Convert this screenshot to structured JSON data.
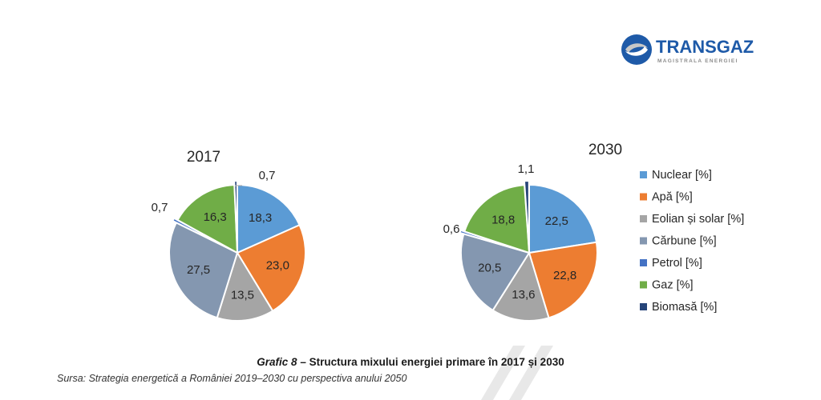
{
  "logo": {
    "brand": "TRANSGAZ",
    "tagline": "MAGISTRALA ENERGIEI",
    "colors": {
      "blue": "#1e5aa8",
      "grey": "#8c8c8c"
    }
  },
  "chart_data": [
    {
      "type": "pie",
      "title": "2017",
      "categories": [
        "Nuclear [%]",
        "Apă [%]",
        "Eolian și solar [%]",
        "Cărbune [%]",
        "Petrol [%]",
        "Gaz [%]",
        "Biomasă  [%]"
      ],
      "values": [
        18.3,
        23.0,
        13.5,
        27.5,
        0.7,
        16.3,
        0.7
      ],
      "labels": [
        "18,3",
        "23,0",
        "13,5",
        "27,5",
        "0,7",
        "16,3",
        "0,7"
      ]
    },
    {
      "type": "pie",
      "title": "2030",
      "categories": [
        "Nuclear [%]",
        "Apă [%]",
        "Eolian și solar [%]",
        "Cărbune [%]",
        "Petrol [%]",
        "Gaz [%]",
        "Biomasă  [%]"
      ],
      "values": [
        22.5,
        22.8,
        13.6,
        20.5,
        0.6,
        18.8,
        1.1
      ],
      "labels": [
        "22,5",
        "22,8",
        "13,6",
        "20,5",
        "0,6",
        "18,8",
        "1,1"
      ]
    }
  ],
  "legend": {
    "placement": "right",
    "items": [
      "Nuclear [%]",
      "Apă [%]",
      "Eolian și solar [%]",
      "Cărbune [%]",
      "Petrol [%]",
      "Gaz [%]",
      "Biomasă  [%]"
    ]
  },
  "colors": [
    "#5b9bd5",
    "#ed7d31",
    "#a5a5a5",
    "#8497b0",
    "#4472c4",
    "#70ad47",
    "#264478"
  ],
  "caption": {
    "lead": "Grafic 8",
    "rest": " – Structura mixului energiei primare în 2017 și 2030"
  },
  "source": "Sursa: Strategia energetică a României 2019–2030 cu perspectiva anului 2050"
}
